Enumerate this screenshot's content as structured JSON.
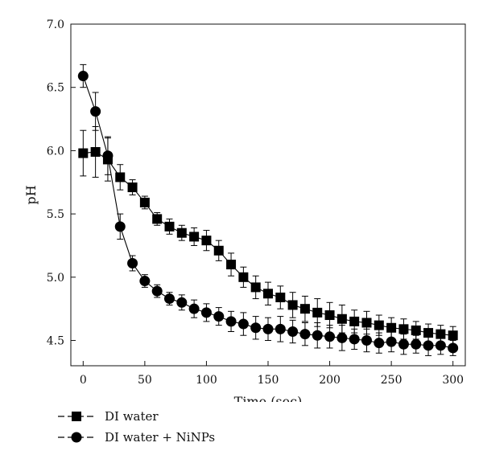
{
  "chart_data": {
    "type": "line",
    "xlabel": "Time (sec)",
    "ylabel": "pH",
    "xlim": [
      -10,
      310
    ],
    "ylim": [
      4.3,
      7.0
    ],
    "x_ticks": [
      "0",
      "50",
      "100",
      "150",
      "200",
      "250",
      "300"
    ],
    "y_ticks": [
      "4.5",
      "5.0",
      "5.5",
      "6.0",
      "6.5",
      "7.0"
    ],
    "grid": false,
    "legend_position": "bottom-left, below plot",
    "series": [
      {
        "name": "DI water",
        "marker": "square",
        "color": "#000000",
        "x": [
          0,
          10,
          20,
          30,
          40,
          50,
          60,
          70,
          80,
          90,
          100,
          110,
          120,
          130,
          140,
          150,
          160,
          170,
          180,
          190,
          200,
          210,
          220,
          230,
          240,
          250,
          260,
          270,
          280,
          290,
          300
        ],
        "y": [
          5.98,
          5.99,
          5.93,
          5.79,
          5.71,
          5.59,
          5.46,
          5.4,
          5.35,
          5.32,
          5.29,
          5.21,
          5.1,
          5.0,
          4.92,
          4.87,
          4.84,
          4.78,
          4.75,
          4.72,
          4.7,
          4.67,
          4.65,
          4.64,
          4.62,
          4.6,
          4.59,
          4.58,
          4.56,
          4.55,
          4.54
        ],
        "error": [
          0.18,
          0.2,
          0.17,
          0.1,
          0.06,
          0.05,
          0.05,
          0.06,
          0.06,
          0.07,
          0.08,
          0.08,
          0.09,
          0.08,
          0.09,
          0.09,
          0.09,
          0.1,
          0.1,
          0.11,
          0.1,
          0.11,
          0.09,
          0.09,
          0.08,
          0.08,
          0.08,
          0.07,
          0.07,
          0.07,
          0.07
        ]
      },
      {
        "name": "DI water + NiNPs",
        "marker": "circle",
        "color": "#000000",
        "x": [
          0,
          10,
          20,
          30,
          40,
          50,
          60,
          70,
          80,
          90,
          100,
          110,
          120,
          130,
          140,
          150,
          160,
          170,
          180,
          190,
          200,
          210,
          220,
          230,
          240,
          250,
          260,
          270,
          280,
          290,
          300
        ],
        "y": [
          6.59,
          6.31,
          5.96,
          5.4,
          5.11,
          4.97,
          4.89,
          4.83,
          4.8,
          4.75,
          4.72,
          4.69,
          4.65,
          4.63,
          4.6,
          4.59,
          4.59,
          4.57,
          4.55,
          4.54,
          4.53,
          4.52,
          4.51,
          4.5,
          4.48,
          4.49,
          4.47,
          4.47,
          4.46,
          4.46,
          4.44
        ],
        "error": [
          0.09,
          0.15,
          0.15,
          0.1,
          0.06,
          0.05,
          0.05,
          0.05,
          0.06,
          0.07,
          0.07,
          0.07,
          0.08,
          0.09,
          0.09,
          0.09,
          0.1,
          0.09,
          0.09,
          0.1,
          0.09,
          0.1,
          0.08,
          0.09,
          0.08,
          0.08,
          0.08,
          0.07,
          0.08,
          0.07,
          0.06
        ]
      }
    ]
  },
  "legend": {
    "items": [
      {
        "label": "DI water",
        "marker": "square"
      },
      {
        "label": "DI water + NiNPs",
        "marker": "circle"
      }
    ]
  }
}
